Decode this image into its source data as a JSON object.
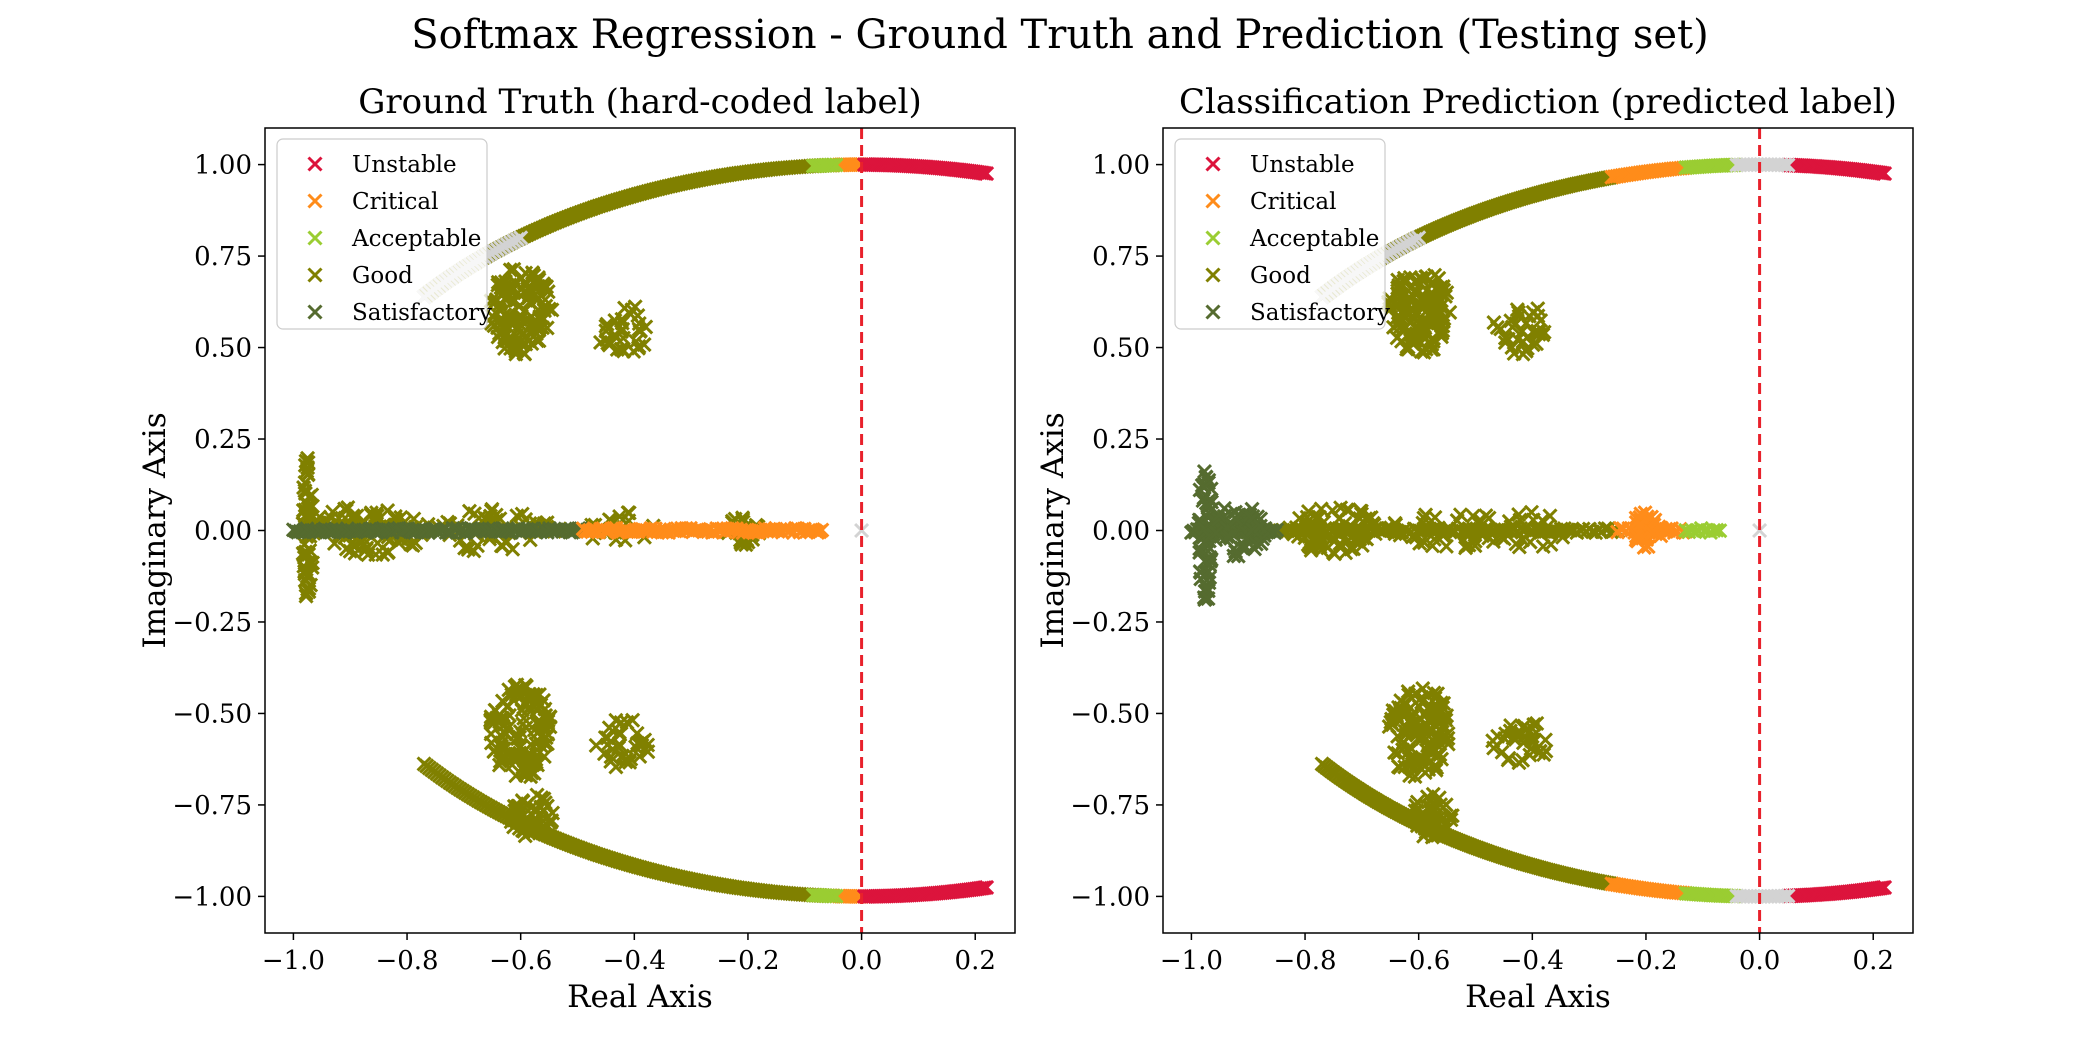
{
  "figure": {
    "title": "Softmax Regression - Ground Truth and Prediction (Testing set)"
  },
  "chart_data": [
    {
      "type": "scatter",
      "title": "Ground Truth (hard-coded label)",
      "xlabel": "Real Axis",
      "ylabel": "Imaginary Axis",
      "xlim": [
        -1.05,
        0.27
      ],
      "ylim": [
        -1.1,
        1.1
      ],
      "xticks": [
        "−1.0",
        "−0.8",
        "−0.6",
        "−0.4",
        "−0.2",
        "0.0",
        "0.2"
      ],
      "xtick_values": [
        -1.0,
        -0.8,
        -0.6,
        -0.4,
        -0.2,
        0.0,
        0.2
      ],
      "yticks": [
        "−1.00",
        "−0.75",
        "−0.50",
        "−0.25",
        "0.00",
        "0.25",
        "0.50",
        "0.75",
        "1.00"
      ],
      "ytick_values": [
        -1.0,
        -0.75,
        -0.5,
        -0.25,
        0.0,
        0.25,
        0.5,
        0.75,
        1.0
      ],
      "marker": "x",
      "reference_line": {
        "x": 0.0,
        "color": "#e8212b",
        "style": "dashed"
      },
      "legend_position": "upper-left",
      "legend": [
        {
          "label": "Unstable",
          "color": "#dc143c"
        },
        {
          "label": "Critical",
          "color": "#ff8c1a"
        },
        {
          "label": "Acceptable",
          "color": "#9acd32"
        },
        {
          "label": "Good",
          "color": "#808000"
        },
        {
          "label": "Satisfactory",
          "color": "#556b2f"
        }
      ],
      "unlabeled_color": "#d3d3d3",
      "series": [
        {
          "name": "Unstable",
          "color": "#dc143c",
          "arcs": [
            {
              "x_range": [
                0.005,
                0.22
              ],
              "points": 60
            }
          ]
        },
        {
          "name": "Critical",
          "color": "#ff8c1a",
          "arcs": [
            {
              "x_range": [
                -0.04,
                0.0
              ],
              "points": 12
            }
          ],
          "real_axis_segments": [
            {
              "x_range": [
                -0.49,
                -0.07
              ],
              "points": 110
            }
          ]
        },
        {
          "name": "Acceptable",
          "color": "#9acd32",
          "arcs": [
            {
              "x_range": [
                -0.085,
                -0.045
              ],
              "points": 10
            }
          ]
        },
        {
          "name": "Good",
          "color": "#808000",
          "arcs": [
            {
              "x_range": [
                -0.77,
                -0.05
              ],
              "points": 160
            }
          ],
          "clusters": [
            {
              "cx": -0.6,
              "cy": 0.6,
              "rx": 0.055,
              "ry": 0.12,
              "points": 140
            },
            {
              "cx": -0.6,
              "cy": -0.55,
              "rx": 0.055,
              "ry": 0.13,
              "points": 140
            },
            {
              "cx": -0.58,
              "cy": -0.78,
              "rx": 0.04,
              "ry": 0.06,
              "points": 50
            },
            {
              "cx": -0.42,
              "cy": 0.55,
              "rx": 0.05,
              "ry": 0.07,
              "points": 35
            },
            {
              "cx": -0.42,
              "cy": -0.58,
              "rx": 0.05,
              "ry": 0.07,
              "points": 35
            },
            {
              "cx": -0.87,
              "cy": 0.0,
              "rx": 0.1,
              "ry": 0.07,
              "points": 90
            },
            {
              "cx": -0.65,
              "cy": 0.0,
              "rx": 0.12,
              "ry": 0.06,
              "points": 60
            },
            {
              "cx": -0.42,
              "cy": 0.0,
              "rx": 0.06,
              "ry": 0.05,
              "points": 20
            },
            {
              "cx": -0.21,
              "cy": 0.0,
              "rx": 0.03,
              "ry": 0.04,
              "points": 30
            },
            {
              "cx": -0.975,
              "cy": 0.0,
              "rx": 0.01,
              "ry": 0.2,
              "points": 60
            }
          ]
        },
        {
          "name": "Satisfactory",
          "color": "#556b2f",
          "real_axis_segments": [
            {
              "x_range": [
                -1.0,
                -0.49
              ],
              "points": 130
            }
          ]
        },
        {
          "name": "",
          "color": "#d3d3d3",
          "points": [
            [
              0.0,
              0.0
            ]
          ],
          "arcs": [
            {
              "x_range": [
                -0.77,
                -0.6
              ],
              "points": 30,
              "upper_only": true
            }
          ]
        }
      ]
    },
    {
      "type": "scatter",
      "title": "Classification Prediction (predicted label)",
      "xlabel": "Real Axis",
      "ylabel": "Imaginary Axis",
      "xlim": [
        -1.05,
        0.27
      ],
      "ylim": [
        -1.1,
        1.1
      ],
      "xticks": [
        "−1.0",
        "−0.8",
        "−0.6",
        "−0.4",
        "−0.2",
        "0.0",
        "0.2"
      ],
      "xtick_values": [
        -1.0,
        -0.8,
        -0.6,
        -0.4,
        -0.2,
        0.0,
        0.2
      ],
      "yticks": [
        "−1.00",
        "−0.75",
        "−0.50",
        "−0.25",
        "0.00",
        "0.25",
        "0.50",
        "0.75",
        "1.00"
      ],
      "ytick_values": [
        -1.0,
        -0.75,
        -0.5,
        -0.25,
        0.0,
        0.25,
        0.5,
        0.75,
        1.0
      ],
      "marker": "x",
      "reference_line": {
        "x": 0.0,
        "color": "#e8212b",
        "style": "dashed"
      },
      "legend_position": "upper-left",
      "legend": [
        {
          "label": "Unstable",
          "color": "#dc143c"
        },
        {
          "label": "Critical",
          "color": "#ff8c1a"
        },
        {
          "label": "Acceptable",
          "color": "#9acd32"
        },
        {
          "label": "Good",
          "color": "#808000"
        },
        {
          "label": "Satisfactory",
          "color": "#556b2f"
        }
      ],
      "unlabeled_color": "#d3d3d3",
      "series": [
        {
          "name": "Unstable",
          "color": "#dc143c",
          "arcs": [
            {
              "x_range": [
                0.05,
                0.22
              ],
              "points": 50
            }
          ]
        },
        {
          "name": "Critical",
          "color": "#ff8c1a",
          "arcs": [
            {
              "x_range": [
                -0.26,
                -0.13
              ],
              "points": 30
            }
          ],
          "clusters": [
            {
              "cx": -0.2,
              "cy": 0.0,
              "rx": 0.03,
              "ry": 0.05,
              "points": 35
            }
          ],
          "real_axis_segments": [
            {
              "x_range": [
                -0.25,
                -0.13
              ],
              "points": 25
            }
          ]
        },
        {
          "name": "Acceptable",
          "color": "#9acd32",
          "arcs": [
            {
              "x_range": [
                -0.13,
                -0.04
              ],
              "points": 22
            }
          ],
          "real_axis_segments": [
            {
              "x_range": [
                -0.13,
                -0.07
              ],
              "points": 12
            }
          ]
        },
        {
          "name": "Good",
          "color": "#808000",
          "arcs": [
            {
              "x_range": [
                -0.77,
                -0.26
              ],
              "points": 130
            }
          ],
          "clusters": [
            {
              "cx": -0.6,
              "cy": 0.6,
              "rx": 0.055,
              "ry": 0.12,
              "points": 140
            },
            {
              "cx": -0.6,
              "cy": -0.55,
              "rx": 0.055,
              "ry": 0.13,
              "points": 140
            },
            {
              "cx": -0.58,
              "cy": -0.78,
              "rx": 0.04,
              "ry": 0.06,
              "points": 50
            },
            {
              "cx": -0.42,
              "cy": 0.55,
              "rx": 0.05,
              "ry": 0.07,
              "points": 35
            },
            {
              "cx": -0.42,
              "cy": -0.58,
              "rx": 0.05,
              "ry": 0.07,
              "points": 35
            },
            {
              "cx": -0.75,
              "cy": 0.0,
              "rx": 0.08,
              "ry": 0.07,
              "points": 80
            },
            {
              "cx": -0.55,
              "cy": 0.0,
              "rx": 0.12,
              "ry": 0.05,
              "points": 50
            },
            {
              "cx": -0.4,
              "cy": 0.0,
              "rx": 0.06,
              "ry": 0.05,
              "points": 20
            }
          ],
          "real_axis_segments": [
            {
              "x_range": [
                -0.85,
                -0.25
              ],
              "points": 110
            }
          ]
        },
        {
          "name": "Satisfactory",
          "color": "#556b2f",
          "clusters": [
            {
              "cx": -0.975,
              "cy": 0.0,
              "rx": 0.012,
              "ry": 0.2,
              "points": 60
            },
            {
              "cx": -0.92,
              "cy": 0.0,
              "rx": 0.05,
              "ry": 0.07,
              "points": 60
            }
          ],
          "real_axis_segments": [
            {
              "x_range": [
                -1.0,
                -0.85
              ],
              "points": 45
            }
          ]
        },
        {
          "name": "",
          "color": "#d3d3d3",
          "points": [
            [
              0.0,
              0.0
            ]
          ],
          "arcs": [
            {
              "x_range": [
                -0.04,
                0.05
              ],
              "points": 16
            },
            {
              "x_range": [
                -0.77,
                -0.6
              ],
              "points": 30,
              "upper_only": true
            }
          ]
        }
      ]
    }
  ]
}
